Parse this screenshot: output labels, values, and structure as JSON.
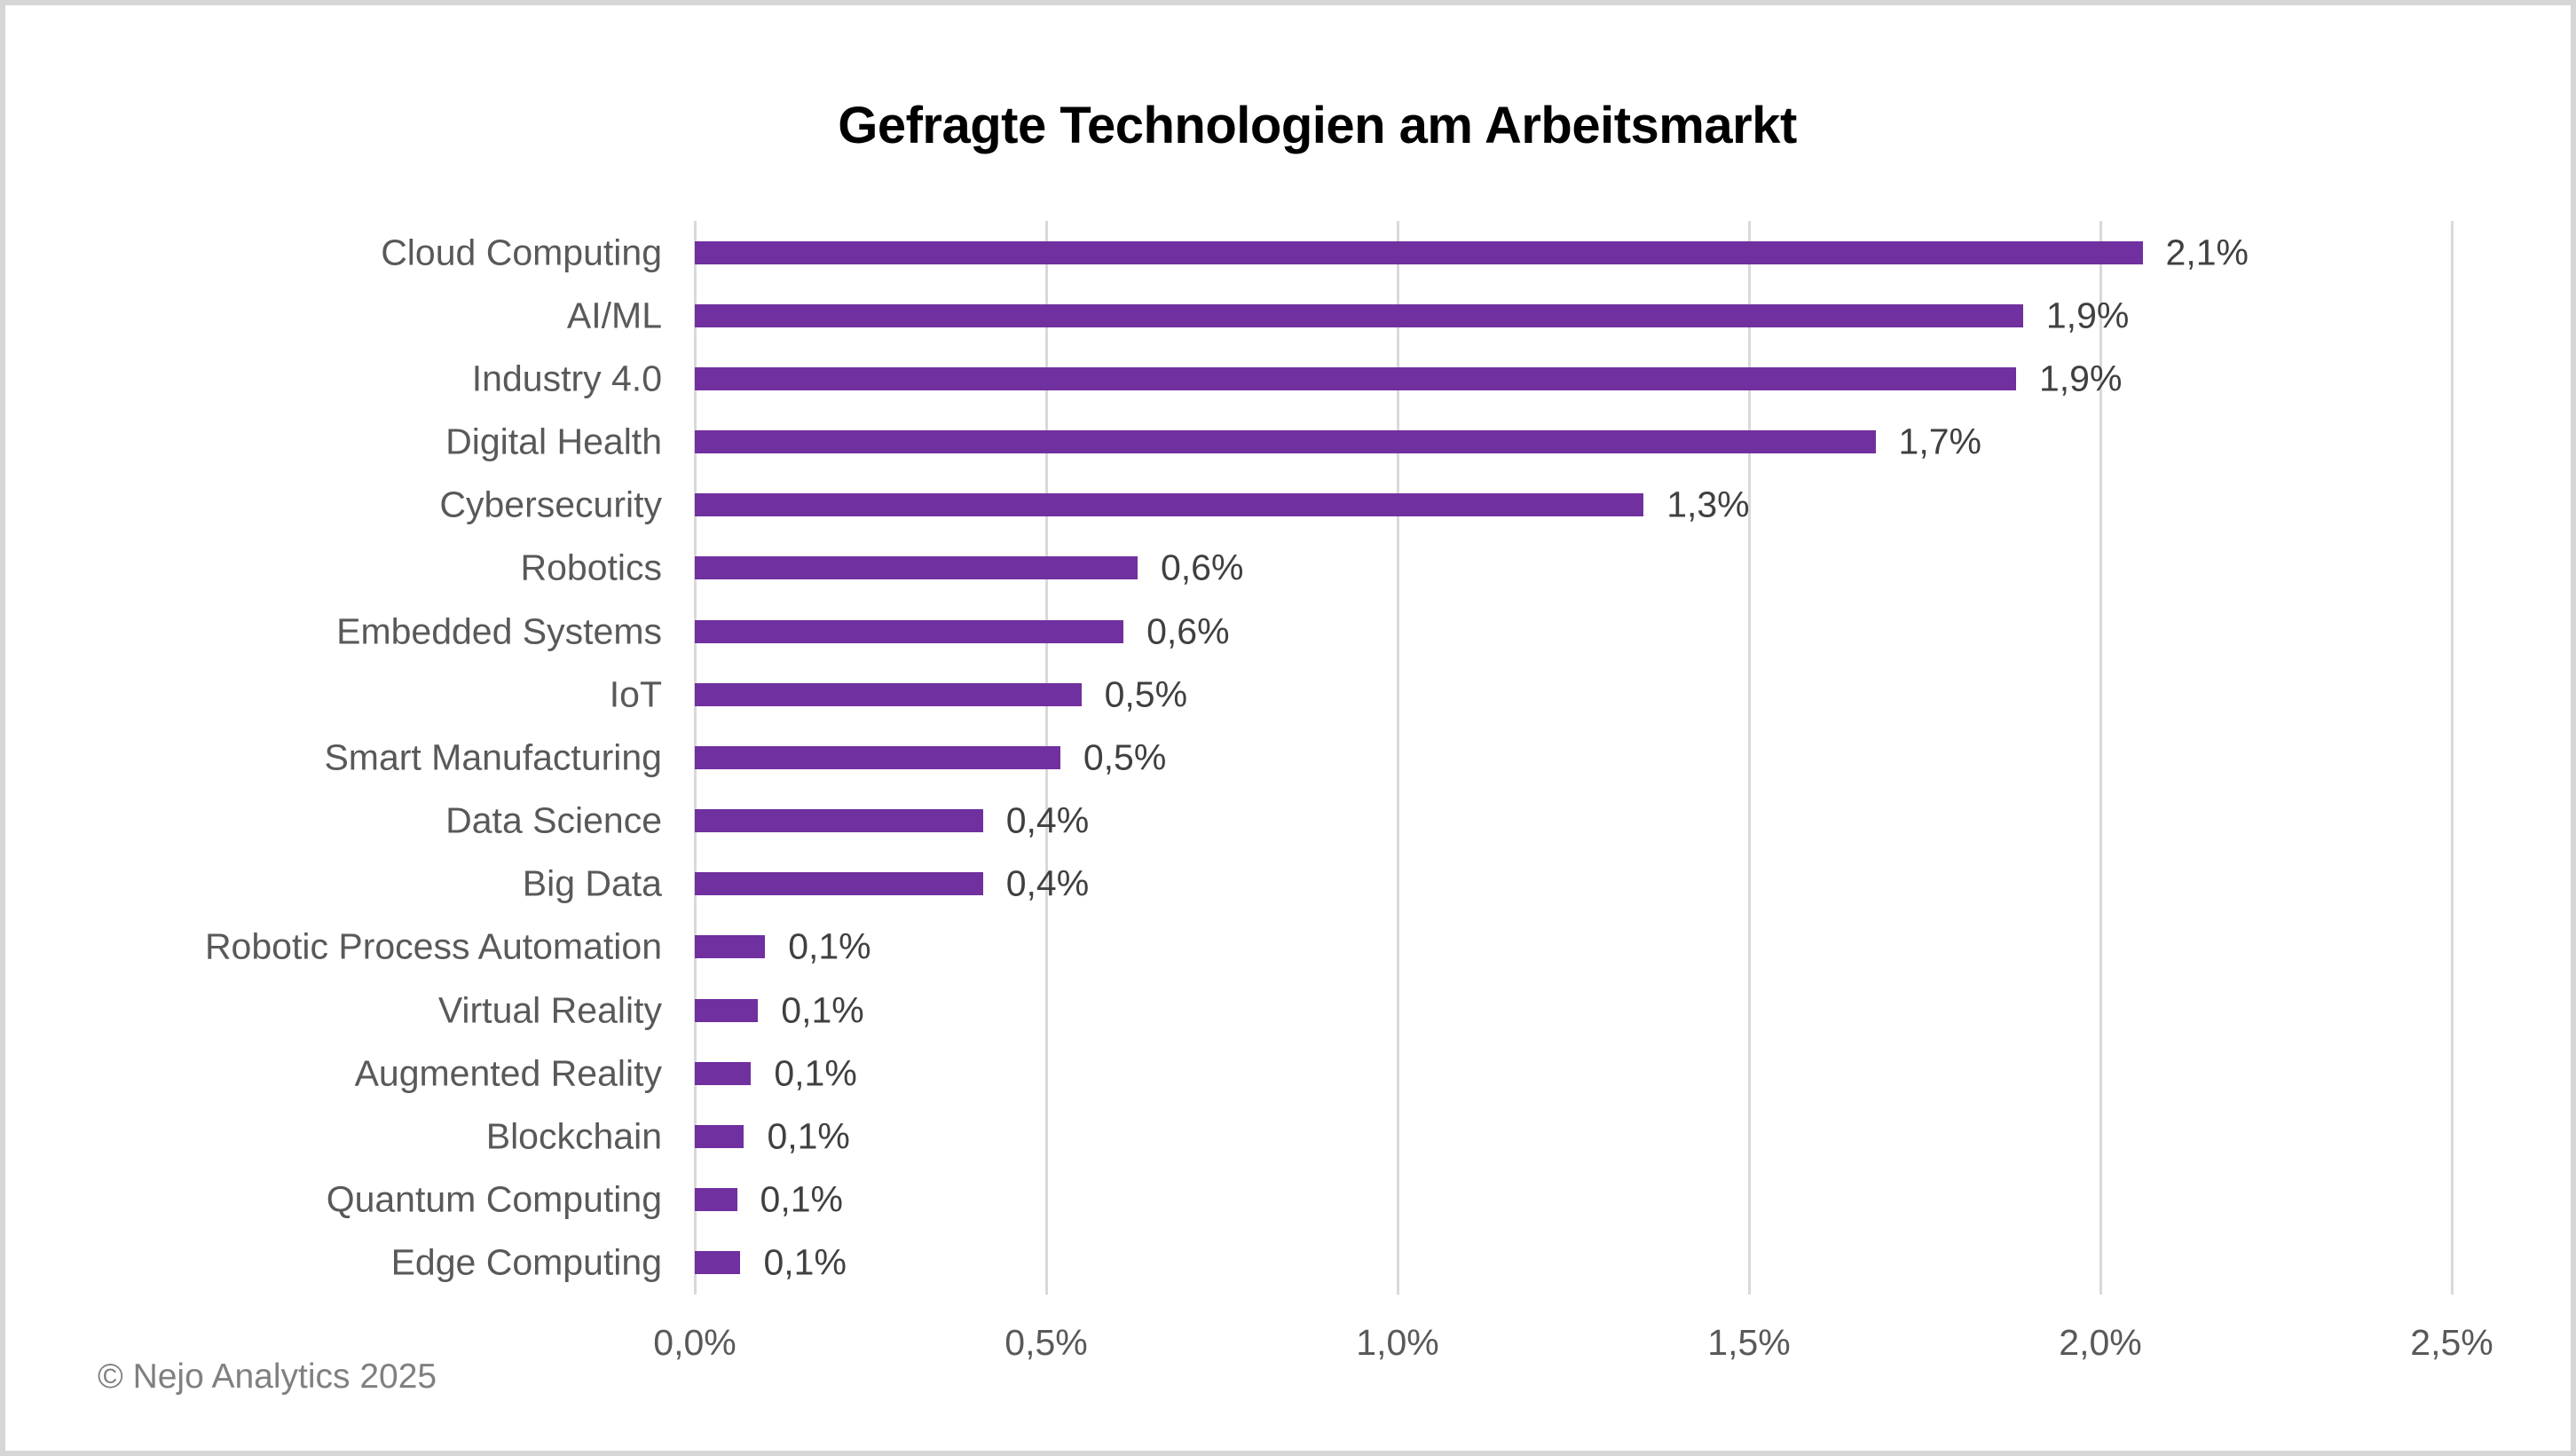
{
  "title": "Gefragte Technologien am Arbeitsmarkt",
  "footer": "© Nejo Analytics 2025",
  "colors": {
    "bar": "#7030a0",
    "grid": "#d9d9d9",
    "border": "#d6d6d6",
    "title": "#000000",
    "category_labels": "#595959",
    "data_labels": "#404040",
    "tick_labels": "#595959",
    "footer": "#808080",
    "background": "#ffffff"
  },
  "chart_data": {
    "type": "bar",
    "orientation": "horizontal",
    "title": "Gefragte Technologien am Arbeitsmarkt",
    "xlabel": "",
    "ylabel": "",
    "xlim": [
      0,
      2.5
    ],
    "grid": true,
    "legend": false,
    "x_ticks": [
      "0,0%",
      "0,5%",
      "1,0%",
      "1,5%",
      "2,0%",
      "2,5%"
    ],
    "categories": [
      "Cloud Computing",
      "AI/ML",
      "Industry 4.0",
      "Digital Health",
      "Cybersecurity",
      "Robotics",
      "Embedded Systems",
      "IoT",
      "Smart Manufacturing",
      "Data Science",
      "Big Data",
      "Robotic Process Automation",
      "Virtual Reality",
      "Augmented Reality",
      "Blockchain",
      "Quantum Computing",
      "Edge Computing"
    ],
    "values": [
      2.06,
      1.89,
      1.88,
      1.68,
      1.35,
      0.63,
      0.61,
      0.55,
      0.52,
      0.41,
      0.41,
      0.1,
      0.09,
      0.08,
      0.07,
      0.06,
      0.065
    ],
    "value_labels": [
      "2,1%",
      "1,9%",
      "1,9%",
      "1,7%",
      "1,3%",
      "0,6%",
      "0,6%",
      "0,5%",
      "0,5%",
      "0,4%",
      "0,4%",
      "0,1%",
      "0,1%",
      "0,1%",
      "0,1%",
      "0,1%",
      "0,1%"
    ]
  }
}
